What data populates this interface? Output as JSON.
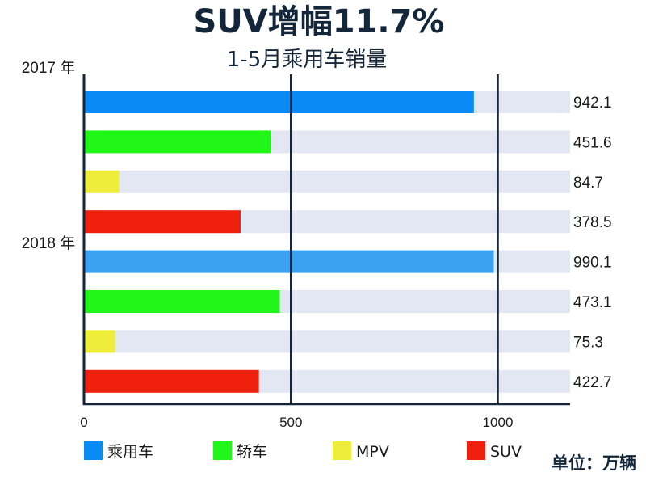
{
  "chart_data": {
    "type": "bar",
    "orientation": "horizontal",
    "title": "SUV增幅11.7%",
    "subtitle": "1-5月乘用车销量",
    "unit_label": "单位：万辆",
    "xlim": [
      0,
      1200
    ],
    "xticks": [
      "0",
      "500",
      "1000"
    ],
    "xtick_values": [
      0,
      500,
      1000
    ],
    "grid": "vertical lines at 500 and 1000",
    "groups": [
      {
        "label": "2017 年",
        "bars": [
          {
            "category": "乘用车",
            "value": 942.1,
            "value_label": "942.1"
          },
          {
            "category": "轿车",
            "value": 451.6,
            "value_label": "451.6"
          },
          {
            "category": "MPV",
            "value": 84.7,
            "value_label": "84.7"
          },
          {
            "category": "SUV",
            "value": 378.5,
            "value_label": "378.5"
          }
        ]
      },
      {
        "label": "2018 年",
        "bars": [
          {
            "category": "乘用车",
            "value": 990.1,
            "value_label": "990.1"
          },
          {
            "category": "轿车",
            "value": 473.1,
            "value_label": "473.1"
          },
          {
            "category": "MPV",
            "value": 75.3,
            "value_label": "75.3"
          },
          {
            "category": "SUV",
            "value": 422.7,
            "value_label": "422.7"
          }
        ]
      }
    ],
    "legend": {
      "position": "bottom",
      "items": [
        {
          "name": "乘用车",
          "color": "#0a8af5"
        },
        {
          "name": "轿车",
          "color": "#22f51a"
        },
        {
          "name": "MPV",
          "color": "#eeee3a"
        },
        {
          "name": "SUV",
          "color": "#f0200e"
        }
      ]
    },
    "colors": {
      "乘用车": "#0a8af5",
      "乘用车_2018": "#3aa2f0",
      "轿车": "#22f51a",
      "MPV": "#eeee3a",
      "SUV": "#f0200e",
      "track": "#e3e7f3",
      "axis": "#14263a"
    }
  }
}
